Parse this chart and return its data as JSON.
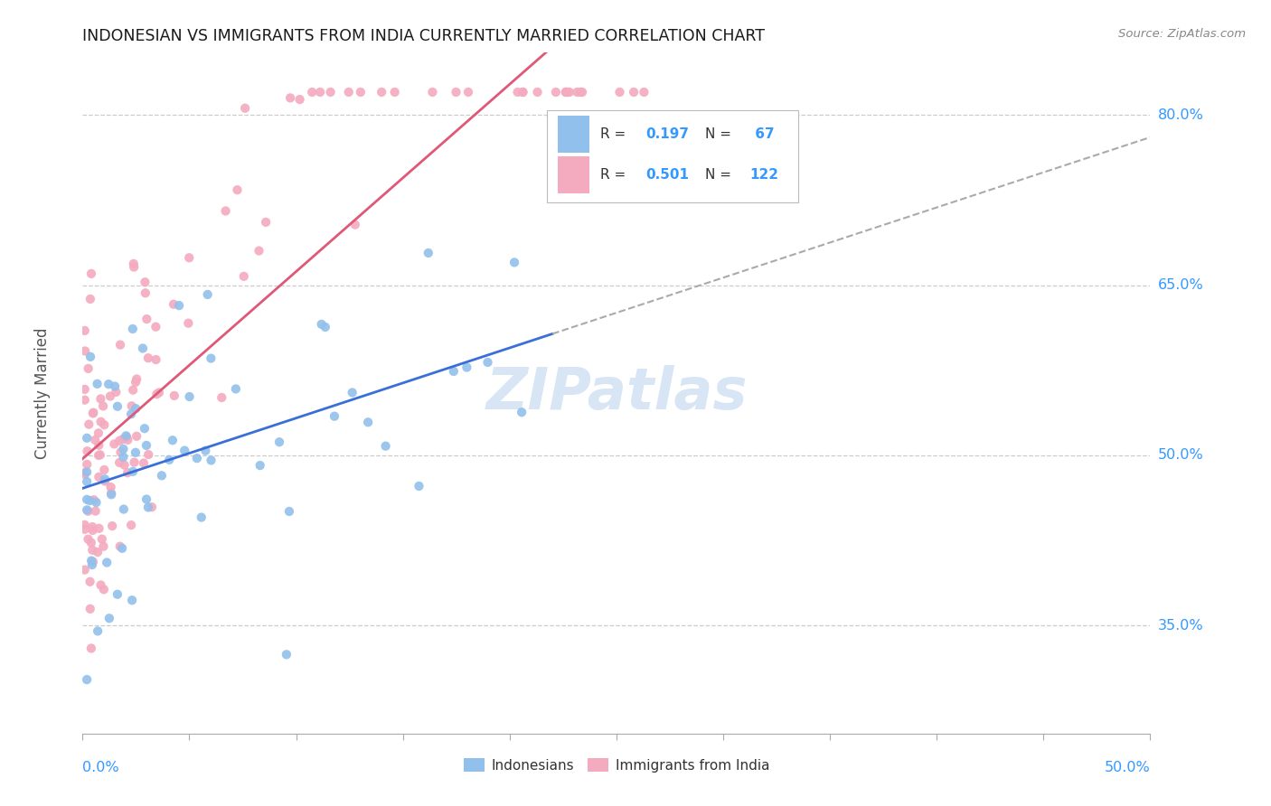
{
  "title": "INDONESIAN VS IMMIGRANTS FROM INDIA CURRENTLY MARRIED CORRELATION CHART",
  "source": "Source: ZipAtlas.com",
  "ylabel": "Currently Married",
  "y_ticks": [
    0.35,
    0.5,
    0.65,
    0.8
  ],
  "y_tick_labels": [
    "35.0%",
    "50.0%",
    "65.0%",
    "80.0%"
  ],
  "x_range": [
    0.0,
    0.5
  ],
  "y_range": [
    0.255,
    0.855
  ],
  "color_blue": "#92C0EC",
  "color_pink": "#F4AABF",
  "line_blue": "#3A6FD8",
  "line_pink": "#E05878",
  "line_grey": "#AAAAAA",
  "watermark": "ZIPatlas",
  "background": "#FFFFFF",
  "title_color": "#1A1A1A",
  "source_color": "#888888",
  "axis_label_color": "#3399FF",
  "ylabel_color": "#555555",
  "grid_color": "#CCCCCC"
}
